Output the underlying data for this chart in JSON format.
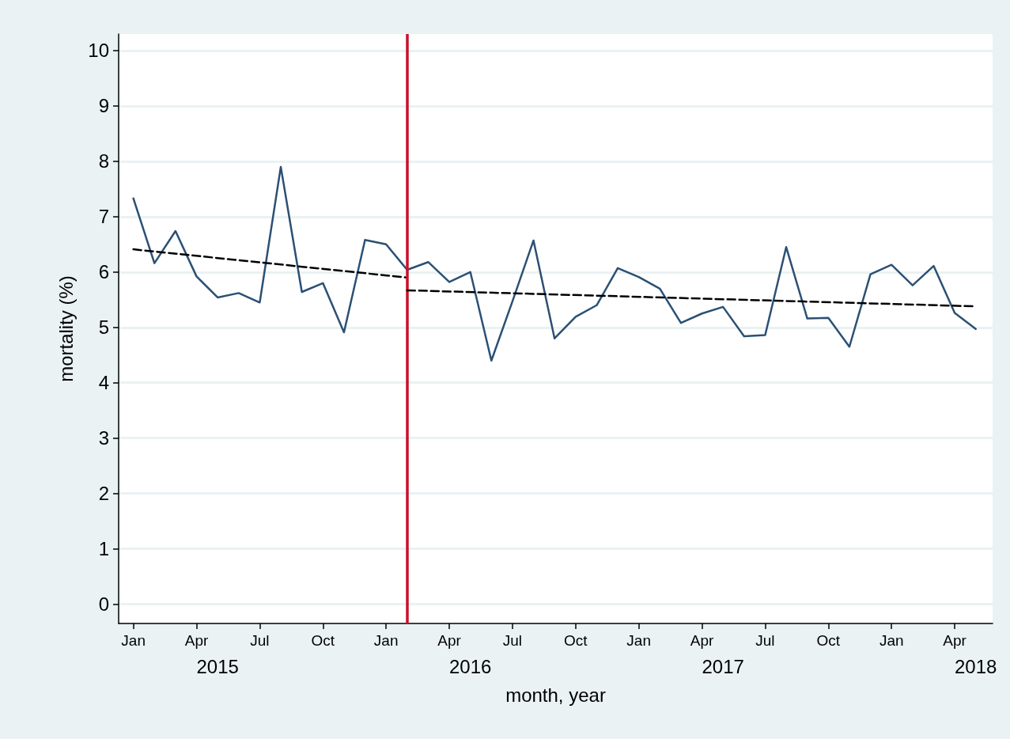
{
  "chart_data": {
    "type": "line",
    "xlabel": "month, year",
    "ylabel": "mortality (%)",
    "x": [
      "2015-01",
      "2015-02",
      "2015-03",
      "2015-04",
      "2015-05",
      "2015-06",
      "2015-07",
      "2015-08",
      "2015-09",
      "2015-10",
      "2015-11",
      "2015-12",
      "2016-01",
      "2016-02",
      "2016-03",
      "2016-04",
      "2016-05",
      "2016-06",
      "2016-07",
      "2016-08",
      "2016-09",
      "2016-10",
      "2016-11",
      "2016-12",
      "2017-01",
      "2017-02",
      "2017-03",
      "2017-04",
      "2017-05",
      "2017-06",
      "2017-07",
      "2017-08",
      "2017-09",
      "2017-10",
      "2017-11",
      "2017-12",
      "2018-01",
      "2018-02",
      "2018-03",
      "2018-04",
      "2018-05"
    ],
    "series": [
      {
        "color": "#2b5074",
        "line_style": "solid",
        "values": [
          7.33,
          6.16,
          6.74,
          5.92,
          5.54,
          5.62,
          5.45,
          7.9,
          5.64,
          5.8,
          4.91,
          6.58,
          6.5,
          6.04,
          6.18,
          5.82,
          6.0,
          4.4,
          5.47,
          6.57,
          4.8,
          5.19,
          5.4,
          6.07,
          5.91,
          5.7,
          5.08,
          5.25,
          5.37,
          4.84,
          4.86,
          6.45,
          5.16,
          5.17,
          4.65,
          5.96,
          6.13,
          5.76,
          6.11,
          5.26,
          4.97
        ]
      },
      {
        "type": "line",
        "color": "#000000",
        "line_style": "dashed",
        "x": [
          "2015-01",
          "2016-02"
        ],
        "values": [
          6.41,
          5.9
        ]
      },
      {
        "type": "line",
        "color": "#000000",
        "line_style": "dashed",
        "x": [
          "2016-02",
          "2018-05"
        ],
        "values": [
          5.67,
          5.38
        ]
      }
    ],
    "xlim": [
      "2014-12-10",
      "2018-05-25"
    ],
    "xticks": [
      {
        "value": "2015-01",
        "label": "Jan"
      },
      {
        "value": "2015-04",
        "label": "Apr"
      },
      {
        "value": "2015-07",
        "label": "Jul"
      },
      {
        "value": "2015-10",
        "label": "Oct"
      },
      {
        "value": "2016-01",
        "label": "Jan"
      },
      {
        "value": "2016-04",
        "label": "Apr"
      },
      {
        "value": "2016-07",
        "label": "Jul"
      },
      {
        "value": "2016-10",
        "label": "Oct"
      },
      {
        "value": "2017-01",
        "label": "Jan"
      },
      {
        "value": "2017-04",
        "label": "Apr"
      },
      {
        "value": "2017-07",
        "label": "Jul"
      },
      {
        "value": "2017-10",
        "label": "Oct"
      },
      {
        "value": "2018-01",
        "label": "Jan"
      },
      {
        "value": "2018-04",
        "label": "Apr"
      }
    ],
    "x2lim": [
      "2014-12-10",
      "2018-05-25"
    ],
    "x2ticks": [
      {
        "value": "2015-05",
        "label": "2015"
      },
      {
        "value": "2016-05",
        "label": "2016"
      },
      {
        "value": "2017-05",
        "label": "2017"
      },
      {
        "value": "2018-05",
        "label": "2018"
      }
    ],
    "ylim": [
      -0.35,
      10.3
    ],
    "yticks": [
      0,
      1,
      2,
      3,
      4,
      5,
      6,
      7,
      8,
      9,
      10
    ],
    "grid": "y",
    "marker": "none",
    "ref_lines": [
      {
        "axis": "x",
        "value": "2016-02",
        "color": "#c8102e",
        "line_style": "solid"
      }
    ]
  }
}
